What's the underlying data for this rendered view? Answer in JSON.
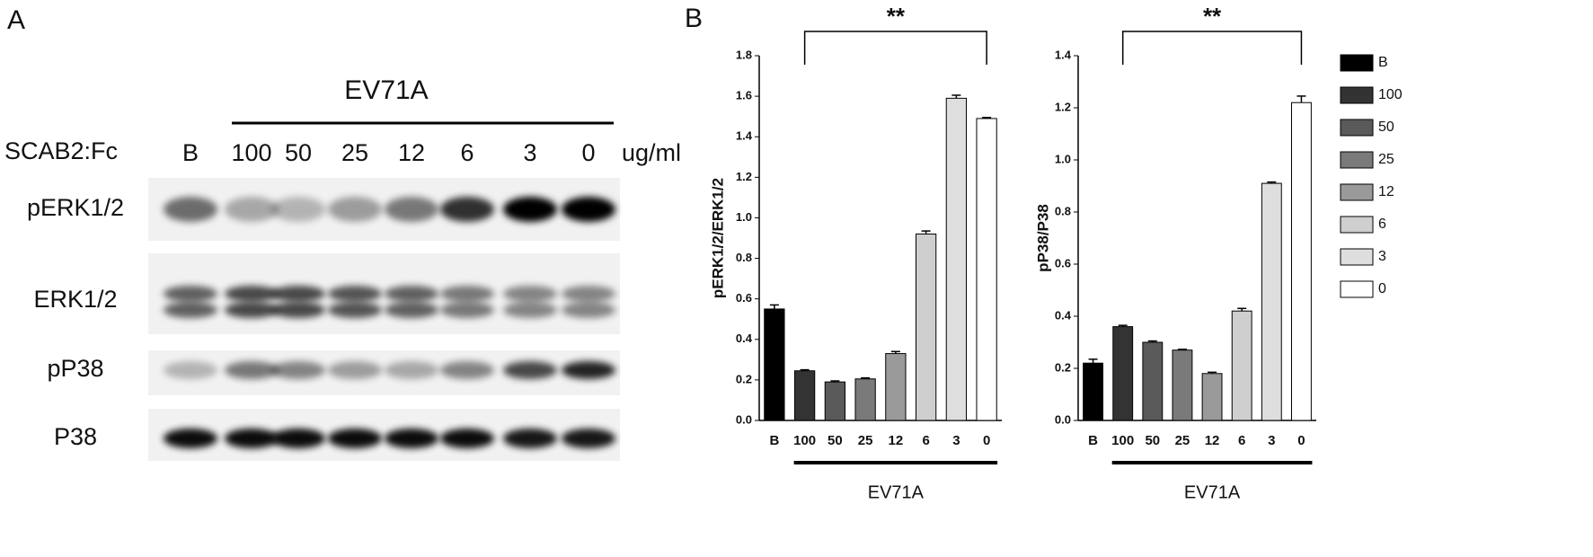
{
  "panel_a": {
    "label": "A",
    "group": "EV71A",
    "treatment": "SCAB2:Fc",
    "lanes": [
      "B",
      "100",
      "50",
      "25",
      "12",
      "6",
      "3",
      "0"
    ],
    "unit": "ug/ml",
    "rows": [
      "pERK1/2",
      "ERK1/2",
      "pP38",
      "P38"
    ]
  },
  "panel_b": {
    "label": "B"
  },
  "chart_data": [
    {
      "type": "bar",
      "ylabel": "pERK1/2/ERK1/2",
      "significance": "**",
      "group_label": "EV71A",
      "categories": [
        "B",
        "100",
        "50",
        "25",
        "12",
        "6",
        "3",
        "0"
      ],
      "values": [
        0.55,
        0.245,
        0.19,
        0.205,
        0.33,
        0.92,
        1.59,
        1.49
      ],
      "errors": [
        0.02,
        0.005,
        0.005,
        0.005,
        0.01,
        0.015,
        0.015,
        0.005
      ],
      "colors": [
        "#000000",
        "#333333",
        "#5a5a5a",
        "#7a7a7a",
        "#9a9a9a",
        "#cfcfcf",
        "#dedede",
        "#ffffff"
      ],
      "ylim": [
        0,
        1.8
      ],
      "yticks": [
        {
          "value": 0,
          "label": "0.0"
        },
        0.2,
        0.4,
        0.6,
        0.8,
        {
          "value": 1,
          "label": "1.0"
        },
        1.2,
        1.4,
        1.6,
        1.8
      ]
    },
    {
      "type": "bar",
      "ylabel": "pP38/P38",
      "significance": "**",
      "group_label": "EV71A",
      "categories": [
        "B",
        "100",
        "50",
        "25",
        "12",
        "6",
        "3",
        "0"
      ],
      "values": [
        0.22,
        0.36,
        0.3,
        0.27,
        0.18,
        0.42,
        0.91,
        1.22
      ],
      "errors": [
        0.015,
        0.005,
        0.005,
        0.003,
        0.005,
        0.01,
        0.005,
        0.025
      ],
      "colors": [
        "#000000",
        "#333333",
        "#5a5a5a",
        "#7a7a7a",
        "#9a9a9a",
        "#cfcfcf",
        "#dedede",
        "#ffffff"
      ],
      "ylim": [
        0,
        1.4
      ],
      "yticks": [
        {
          "value": 0,
          "label": "0.0"
        },
        0.2,
        0.4,
        0.6,
        0.8,
        {
          "value": 1,
          "label": "1.0"
        },
        1.2,
        1.4
      ],
      "legend": "right"
    }
  ]
}
